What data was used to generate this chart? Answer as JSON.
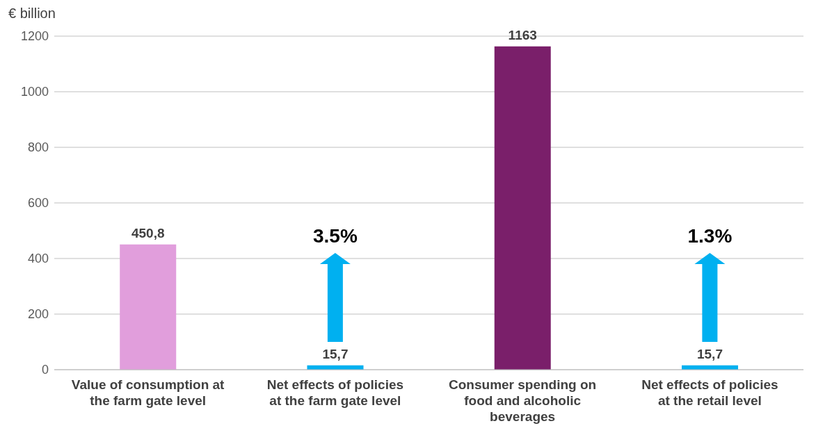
{
  "chart_data": {
    "type": "bar",
    "ylabel": "€ billion",
    "categories": [
      "Value of consumption at the farm gate level",
      "Net effects of policies at the farm gate level",
      "Consumer spending on food and alcoholic beverages",
      "Net effects of policies at the retail level"
    ],
    "values": [
      450.8,
      15.7,
      1163,
      15.7
    ],
    "colors": [
      "#e19edc",
      "#00b0f0",
      "#7a1f6a",
      "#00b0f0"
    ],
    "value_labels": [
      "450,8",
      "15,7",
      "1163",
      "15,7"
    ],
    "ylim": [
      0,
      1200
    ],
    "yticks": [
      0,
      200,
      400,
      600,
      800,
      1000,
      1200
    ],
    "grid": "y",
    "legend": false,
    "annotations": [
      "3.5%",
      "1.3%"
    ]
  }
}
